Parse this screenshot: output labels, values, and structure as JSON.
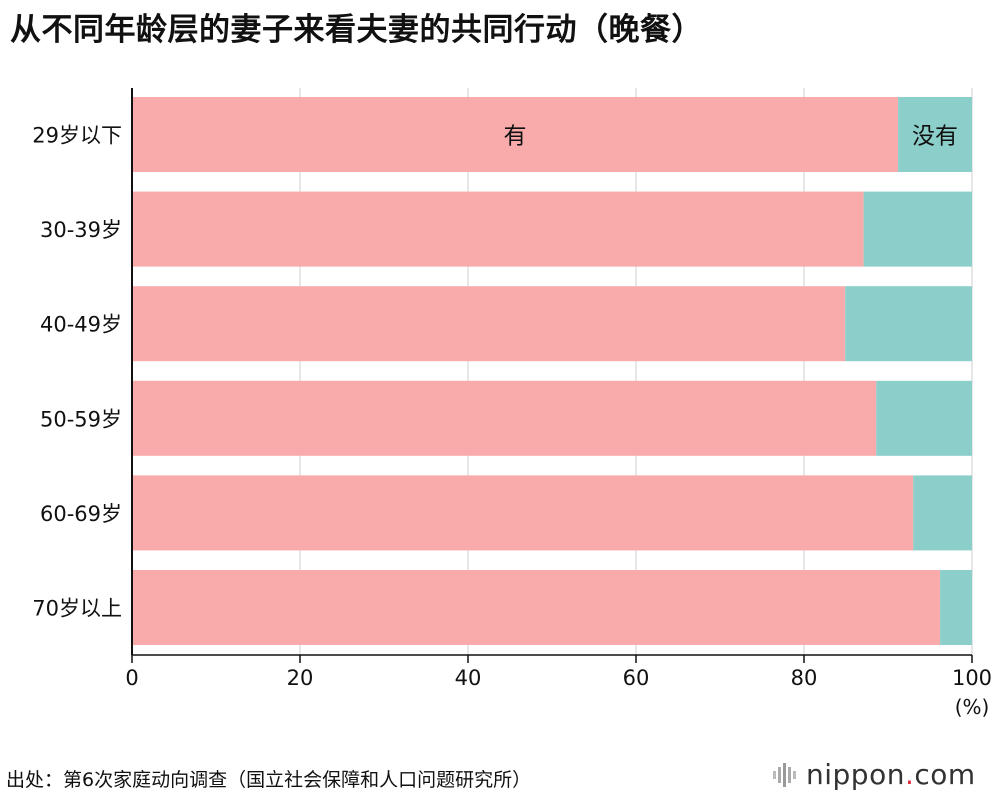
{
  "title": "从不同年龄层的妻子来看夫妻的共同行动（晚餐）",
  "source": "出处：第6次家庭动向调查（国立社会保障和人口问题研究所）",
  "brand": {
    "name": "nippon",
    "dot": ".",
    "tld": "com"
  },
  "chart_data": {
    "type": "bar",
    "orientation": "horizontal",
    "stacked": true,
    "categories": [
      "29岁以下",
      "30-39岁",
      "40-49岁",
      "50-59岁",
      "60-69岁",
      "70岁以上"
    ],
    "series": [
      {
        "name": "有",
        "color": "#f9abac",
        "values": [
          91.2,
          87.1,
          84.9,
          88.6,
          93.0,
          96.2
        ]
      },
      {
        "name": "没有",
        "color": "#8ccfca",
        "values": [
          8.8,
          12.9,
          15.1,
          11.4,
          7.0,
          3.8
        ]
      }
    ],
    "x_ticks": [
      0,
      20,
      40,
      60,
      80,
      100
    ],
    "x_unit": "(%)",
    "xlim": [
      0,
      100
    ],
    "grid": true
  }
}
